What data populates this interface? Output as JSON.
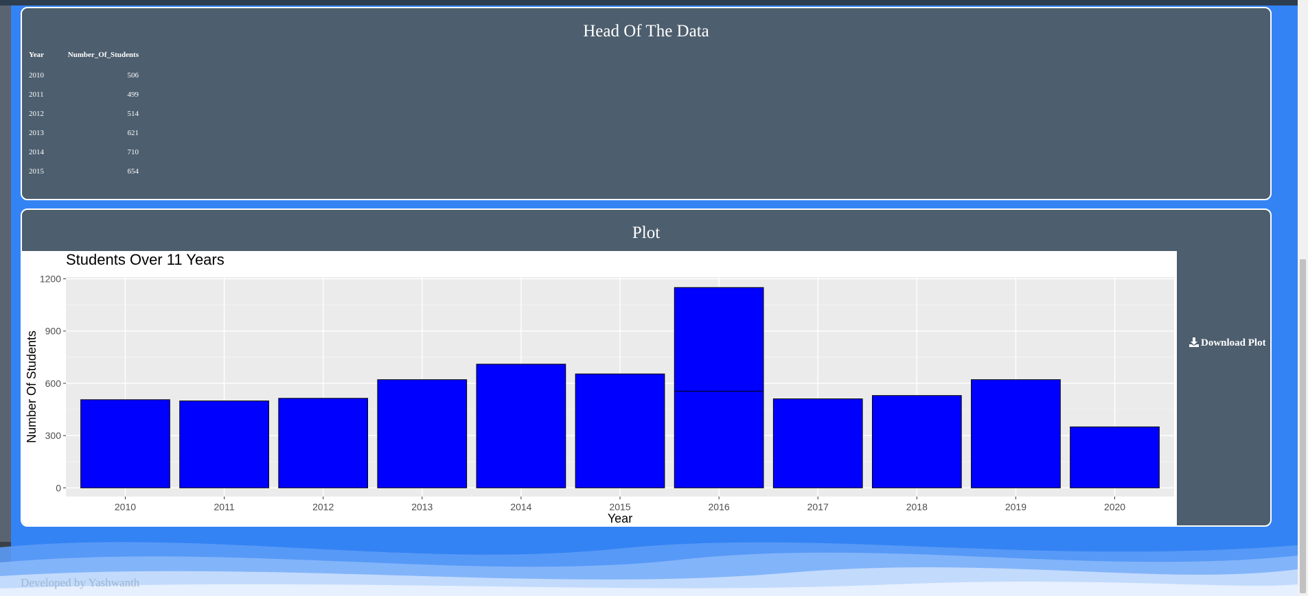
{
  "head_panel": {
    "title": "Head Of The Data",
    "columns": [
      "Year",
      "Number_Of_Students"
    ],
    "rows": [
      [
        "2010",
        "506"
      ],
      [
        "2011",
        "499"
      ],
      [
        "2012",
        "514"
      ],
      [
        "2013",
        "621"
      ],
      [
        "2014",
        "710"
      ],
      [
        "2015",
        "654"
      ]
    ]
  },
  "plot_panel": {
    "title": "Plot",
    "download_label": "Download Plot"
  },
  "footer": {
    "text": "Developed by Yashwanth"
  },
  "colors": {
    "bar_fill": "#0000ff",
    "panel_bg": "#4d5e6e",
    "page_bg": "#3483f4",
    "plot_bg": "#ebebeb"
  },
  "chart_data": {
    "type": "bar",
    "title": "Students Over 11 Years",
    "xlabel": "Year",
    "ylabel": "Number Of Students",
    "categories": [
      "2010",
      "2011",
      "2012",
      "2013",
      "2014",
      "2015",
      "2016",
      "2017",
      "2018",
      "2019",
      "2020"
    ],
    "values": [
      506,
      499,
      514,
      621,
      710,
      654,
      1150,
      511,
      530,
      621,
      350
    ],
    "segments": [
      {
        "category": "2016",
        "boundary": 555
      }
    ],
    "yticks": [
      0,
      300,
      600,
      900,
      1200
    ],
    "ylim": [
      -50,
      1210
    ],
    "grid": true,
    "legend": "none"
  }
}
